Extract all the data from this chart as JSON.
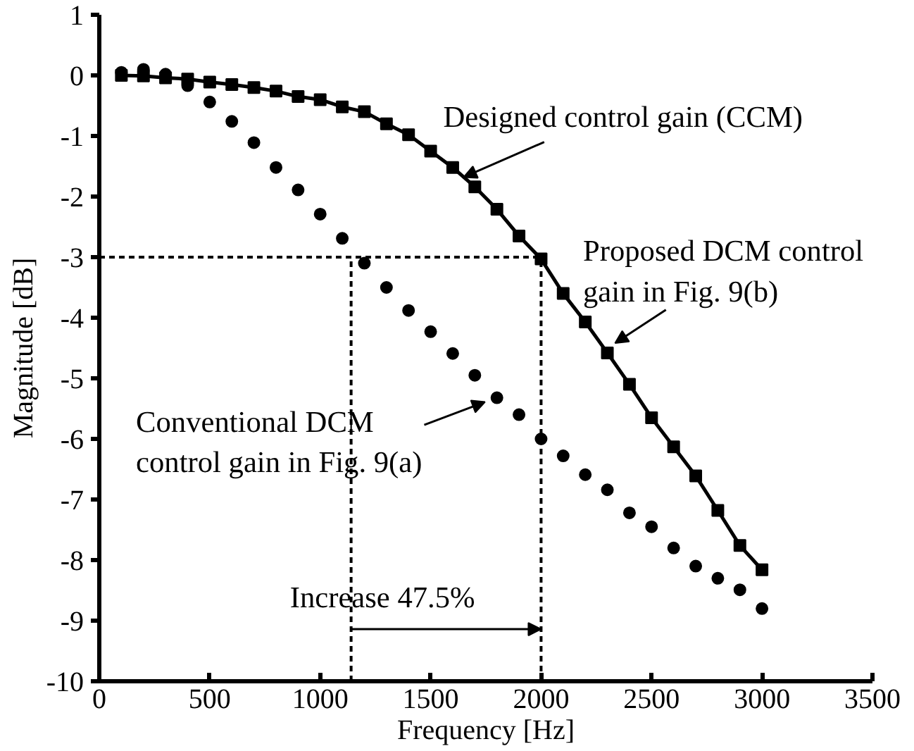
{
  "chart_data": {
    "type": "line",
    "xlabel": "Frequency [Hz]",
    "ylabel": "Magnitude [dB]",
    "x": [
      100,
      200,
      300,
      400,
      500,
      600,
      700,
      800,
      900,
      1000,
      1100,
      1200,
      1300,
      1400,
      1500,
      1600,
      1700,
      1800,
      1900,
      2000,
      2100,
      2200,
      2300,
      2400,
      2500,
      2600,
      2700,
      2800,
      2900,
      3000
    ],
    "series": [
      {
        "marker": "none",
        "line_style": "solid",
        "color": "#000000",
        "values": [
          0.0,
          -0.01,
          -0.04,
          -0.06,
          -0.11,
          -0.15,
          -0.2,
          -0.26,
          -0.35,
          -0.4,
          -0.52,
          -0.6,
          -0.8,
          -0.98,
          -1.25,
          -1.52,
          -1.84,
          -2.21,
          -2.65,
          -3.03,
          -3.6,
          -4.07,
          -4.58,
          -5.1,
          -5.65,
          -6.13,
          -6.61,
          -7.18,
          -7.76,
          -8.16
        ]
      },
      {
        "type": "scatter",
        "marker": "square",
        "color": "#000000",
        "values": [
          0.0,
          -0.01,
          -0.04,
          -0.06,
          -0.11,
          -0.15,
          -0.2,
          -0.26,
          -0.35,
          -0.4,
          -0.52,
          -0.6,
          -0.8,
          -0.98,
          -1.25,
          -1.52,
          -1.84,
          -2.21,
          -2.65,
          -3.03,
          -3.6,
          -4.07,
          -4.58,
          -5.1,
          -5.65,
          -6.13,
          -6.61,
          -7.18,
          -7.76,
          -8.16
        ]
      },
      {
        "type": "scatter",
        "marker": "circle",
        "color": "#000000",
        "values": [
          0.05,
          0.1,
          0.02,
          -0.17,
          -0.44,
          -0.76,
          -1.11,
          -1.52,
          -1.89,
          -2.29,
          -2.69,
          -3.1,
          -3.5,
          -3.88,
          -4.23,
          -4.59,
          -4.95,
          -5.32,
          -5.6,
          -6.0,
          -6.28,
          -6.59,
          -6.84,
          -7.22,
          -7.45,
          -7.8,
          -8.1,
          -8.3,
          -8.49,
          -8.8
        ]
      }
    ],
    "xlim": [
      0,
      3500
    ],
    "xticks": [
      0,
      500,
      1000,
      1500,
      2000,
      2500,
      3000,
      3500
    ],
    "ylim": [
      -10,
      1
    ],
    "yticks": [
      -10,
      -9,
      -8,
      -7,
      -6,
      -5,
      -4,
      -3,
      -2,
      -1,
      0,
      1
    ],
    "grid": false,
    "ref_lines": [
      {
        "axis": "y",
        "value": -3,
        "line_style": "dashed",
        "color": "#000000"
      },
      {
        "axis": "x",
        "value": 1140,
        "line_style": "dashed",
        "color": "#000000"
      },
      {
        "axis": "x",
        "value": 2000,
        "line_style": "dashed",
        "color": "#000000"
      }
    ],
    "annotations": [
      {
        "text": "Designed control gain (CCM)",
        "x": 1650,
        "y": -1.68
      },
      {
        "text": "Proposed DCM control\ngain in Fig. 9(b)",
        "x": 2335,
        "y": -4.42
      },
      {
        "text": "Conventional DCM\ncontrol gain in Fig. 9(a)",
        "x": 1746,
        "y": -5.39
      },
      {
        "text": "Increase 47.5%",
        "x": 2000,
        "y": -9.14
      }
    ]
  }
}
